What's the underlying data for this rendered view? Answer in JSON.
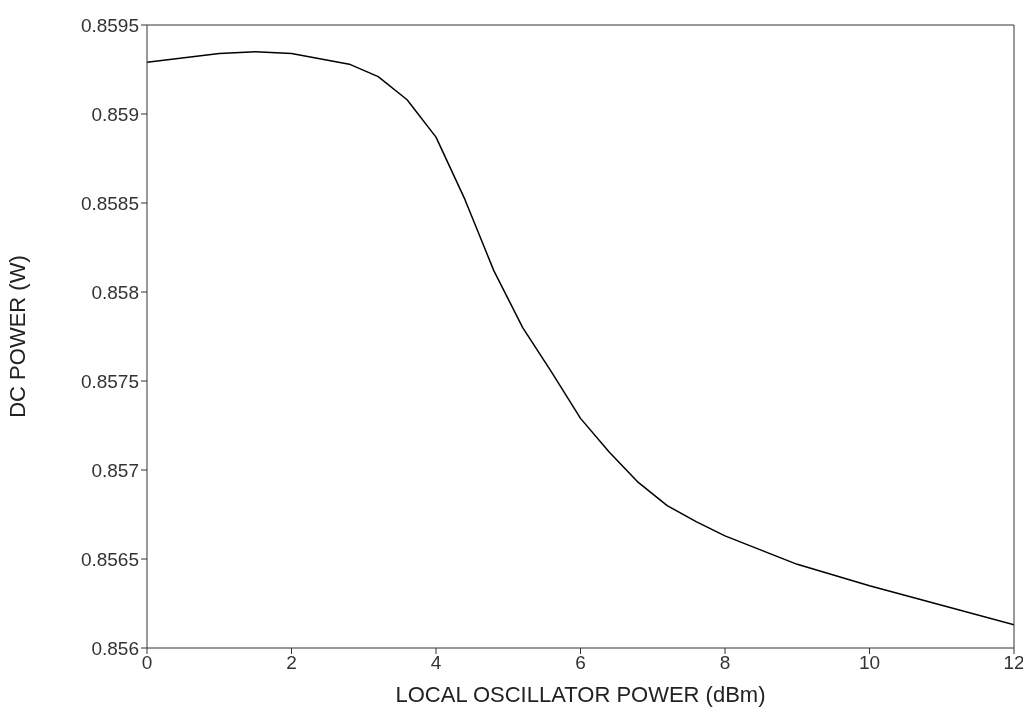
{
  "chart_data": {
    "type": "line",
    "xlabel": "LOCAL OSCILLATOR POWER (dBm)",
    "ylabel": "DC POWER (W)",
    "x": [
      0,
      1,
      1.5,
      2,
      2.8,
      3.2,
      3.6,
      4,
      4.4,
      4.6,
      4.8,
      5,
      5.2,
      5.6,
      6,
      6.4,
      6.8,
      7.2,
      7.6,
      8,
      8.5,
      9,
      10,
      11,
      12
    ],
    "series": [
      {
        "color": "#000000",
        "values": [
          0.85929,
          0.85934,
          0.85935,
          0.85934,
          0.85928,
          0.85921,
          0.85908,
          0.85887,
          0.85852,
          0.85832,
          0.85812,
          0.85796,
          0.8578,
          0.85755,
          0.85729,
          0.8571,
          0.85693,
          0.8568,
          0.85671,
          0.85663,
          0.85655,
          0.85647,
          0.85635,
          0.85624,
          0.85613
        ]
      }
    ],
    "xlim": [
      0,
      12
    ],
    "xticks": [
      0,
      2,
      4,
      6,
      8,
      10,
      12
    ],
    "ylim": [
      0.856,
      0.8595
    ],
    "yticks": [
      0.856,
      0.8565,
      0.857,
      0.8575,
      0.858,
      0.8585,
      0.859,
      0.8595
    ],
    "grid": false,
    "legend": false,
    "marker": "none",
    "line_style": "solid"
  }
}
